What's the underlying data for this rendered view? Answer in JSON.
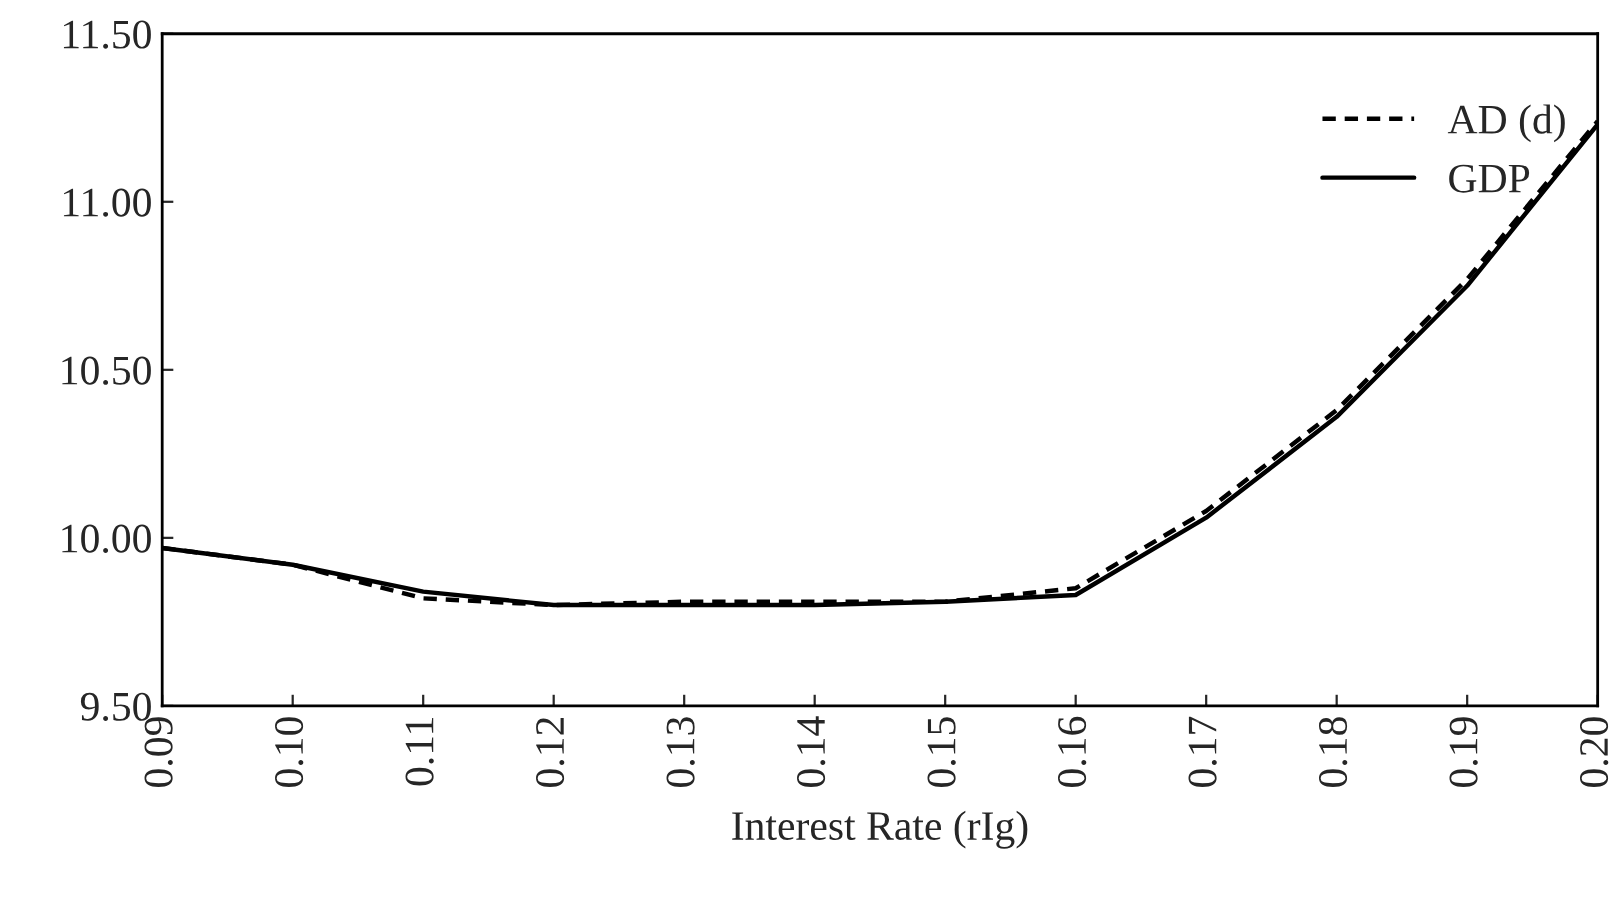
{
  "chart_data": {
    "type": "line",
    "xlabel": "Interest Rate (rIg)",
    "categories": [
      "0.09",
      "0.10",
      "0.11",
      "0.12",
      "0.13",
      "0.14",
      "0.15",
      "0.16",
      "0.17",
      "0.18",
      "0.19",
      "0.20"
    ],
    "series": [
      {
        "name": "AD (d)",
        "color": "#000000",
        "line_style": "dashed",
        "values": [
          9.97,
          9.92,
          9.82,
          9.8,
          9.81,
          9.81,
          9.81,
          9.85,
          10.08,
          10.38,
          10.77,
          11.24
        ]
      },
      {
        "name": "GDP",
        "color": "#000000",
        "line_style": "solid",
        "values": [
          9.97,
          9.92,
          9.84,
          9.8,
          9.8,
          9.8,
          9.81,
          9.83,
          10.06,
          10.36,
          10.75,
          11.23
        ]
      }
    ],
    "ylim": [
      9.5,
      11.5
    ],
    "yticks": [
      {
        "value": 9.5,
        "label": "9.50"
      },
      {
        "value": 10.0,
        "label": "10.00"
      },
      {
        "value": 10.5,
        "label": "10.50"
      },
      {
        "value": 11.0,
        "label": "11.00"
      },
      {
        "value": 11.5,
        "label": "11.50"
      }
    ],
    "grid": false,
    "legend": "top right",
    "marker": "none"
  }
}
